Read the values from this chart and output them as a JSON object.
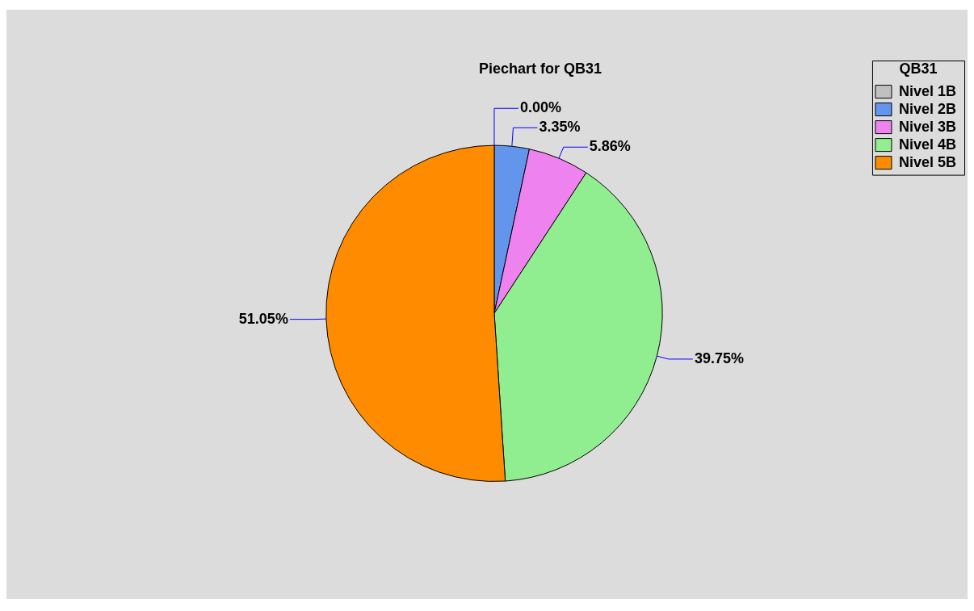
{
  "chart_data": {
    "type": "pie",
    "title": "Piechart for QB31",
    "legend_title": "QB31",
    "legend": "top right",
    "categories": [
      "Nivel 1B",
      "Nivel 2B",
      "Nivel 3B",
      "Nivel 4B",
      "Nivel 5B"
    ],
    "values": [
      0,
      3.35,
      5.86,
      39.75,
      51.05
    ],
    "colors": [
      "#c0c0c0",
      "#6495ed",
      "#ee82ee",
      "#90ee90",
      "#ff8c00"
    ],
    "value_labels": [
      "0.00%",
      "3.35%",
      "5.86%",
      "39.75%",
      "51.05%"
    ]
  }
}
